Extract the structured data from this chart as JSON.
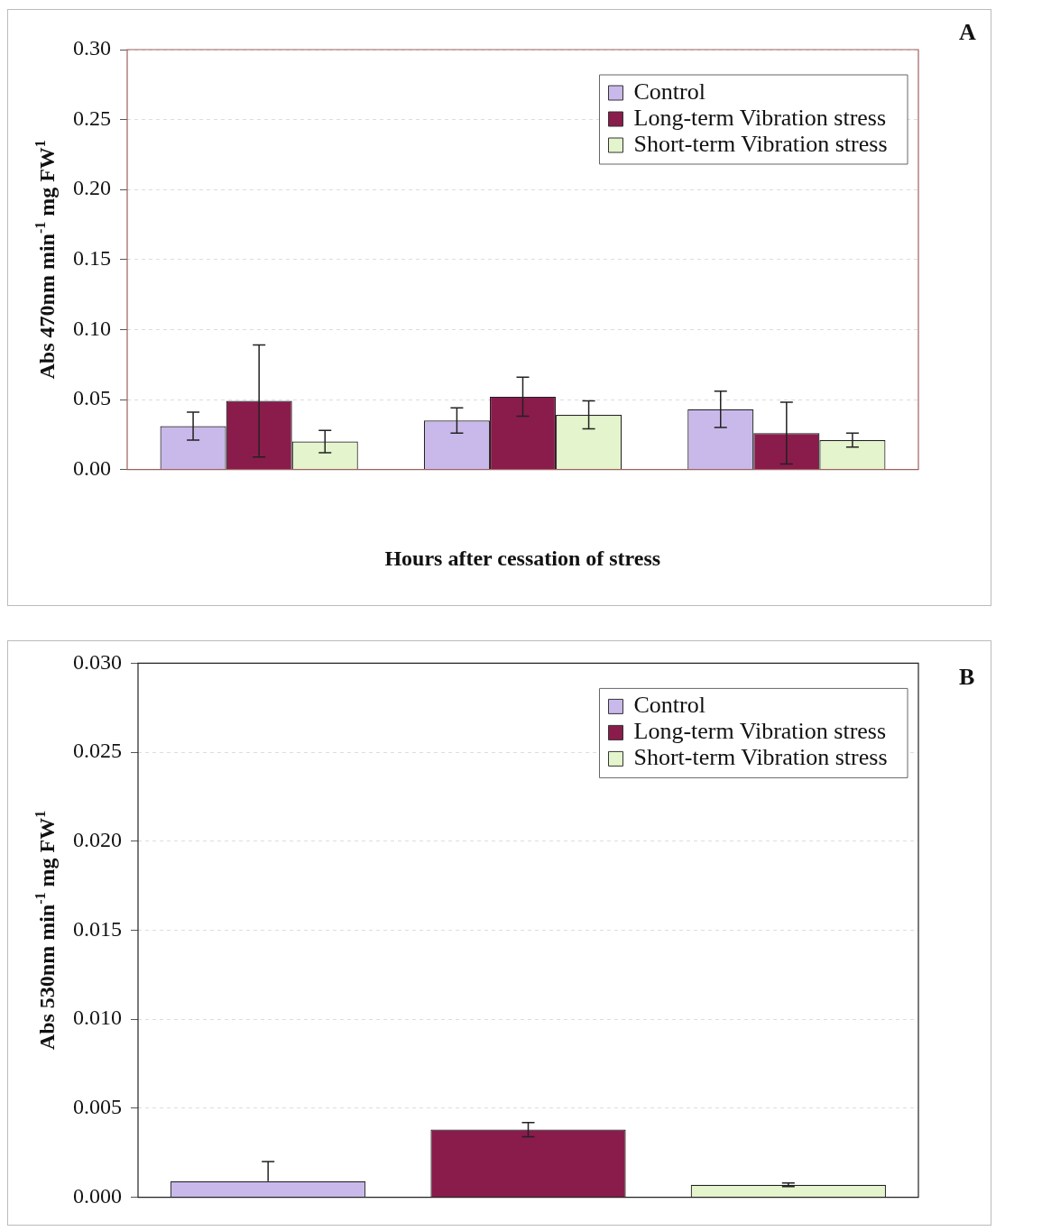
{
  "chart_data": [
    {
      "type": "bar",
      "categories": [
        null,
        null,
        null
      ],
      "xlabel": "Hours after cessation of stress",
      "ylabel": "Abs 470nm min$^{-1}$ mg FW$^{1}$",
      "ylim": [
        0,
        0.3
      ],
      "yticks": [
        {
          "value": 0,
          "label": "0.00"
        },
        {
          "value": 0.05,
          "label": "0.05"
        },
        {
          "value": 0.1,
          "label": "0.10"
        },
        {
          "value": 0.15,
          "label": "0.15"
        },
        {
          "value": 0.2,
          "label": "0.20"
        },
        {
          "value": 0.25,
          "label": "0.25"
        },
        {
          "value": 0.3,
          "label": "0.30"
        }
      ],
      "grid": "y",
      "legend": "top right",
      "annotations": [
        "A"
      ],
      "series": [
        {
          "name": "Control",
          "color": "#c9b9ea",
          "values": [
            0.031,
            0.035,
            0.043
          ],
          "errors": [
            0.01,
            0.009,
            0.013
          ]
        },
        {
          "name": "Long-term Vibration stress",
          "color": "#8a1c4c",
          "values": [
            0.049,
            0.052,
            0.026
          ],
          "errors": [
            0.04,
            0.014,
            0.022
          ]
        },
        {
          "name": "Short-term Vibration stress",
          "color": "#e4f4cc",
          "values": [
            0.02,
            0.039,
            0.021
          ],
          "errors": [
            0.008,
            0.01,
            0.005
          ]
        }
      ]
    },
    {
      "type": "bar",
      "categories": [
        null,
        null,
        null
      ],
      "ylabel": "Abs 530nm min$^{-1}$ mg FW$^{1}$",
      "ylim": [
        0,
        0.03
      ],
      "yticks": [
        {
          "value": 0,
          "label": "0.000"
        },
        {
          "value": 0.005,
          "label": "0.005"
        },
        {
          "value": 0.01,
          "label": "0.010"
        },
        {
          "value": 0.015,
          "label": "0.015"
        },
        {
          "value": 0.02,
          "label": "0.020"
        },
        {
          "value": 0.025,
          "label": "0.025"
        },
        {
          "value": 0.03,
          "label": "0.030"
        }
      ],
      "grid": "y",
      "legend": "top right",
      "annotations": [
        "B"
      ],
      "series": [
        {
          "name": "Control",
          "color": "#c9b9ea",
          "values": [
            0.0009,
            null,
            null
          ],
          "errors": [
            [
              0.0009,
              0.002
            ],
            null,
            null
          ]
        },
        {
          "name": "Long-term Vibration stress",
          "color": "#8a1c4c",
          "values": [
            null,
            0.0038,
            null
          ],
          "errors": [
            null,
            0.0004,
            null
          ]
        },
        {
          "name": "Short-term Vibration stress",
          "color": "#e4f4cc",
          "values": [
            null,
            null,
            0.0007
          ],
          "errors": [
            null,
            null,
            0.0001
          ]
        }
      ]
    }
  ]
}
